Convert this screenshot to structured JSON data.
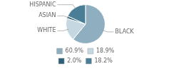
{
  "chart_data": {
    "type": "pie",
    "categories": [
      "BLACK",
      "WHITE",
      "ASIAN",
      "HISPANIC"
    ],
    "values": [
      60.9,
      18.9,
      2.0,
      18.2
    ],
    "value_labels": [
      "60.9%",
      "18.9%",
      "2.0%",
      "18.2%"
    ],
    "colors": [
      "#8fafc0",
      "#c5d8e2",
      "#2d5f7a",
      "#4a7e96"
    ],
    "legend": "bottom"
  }
}
